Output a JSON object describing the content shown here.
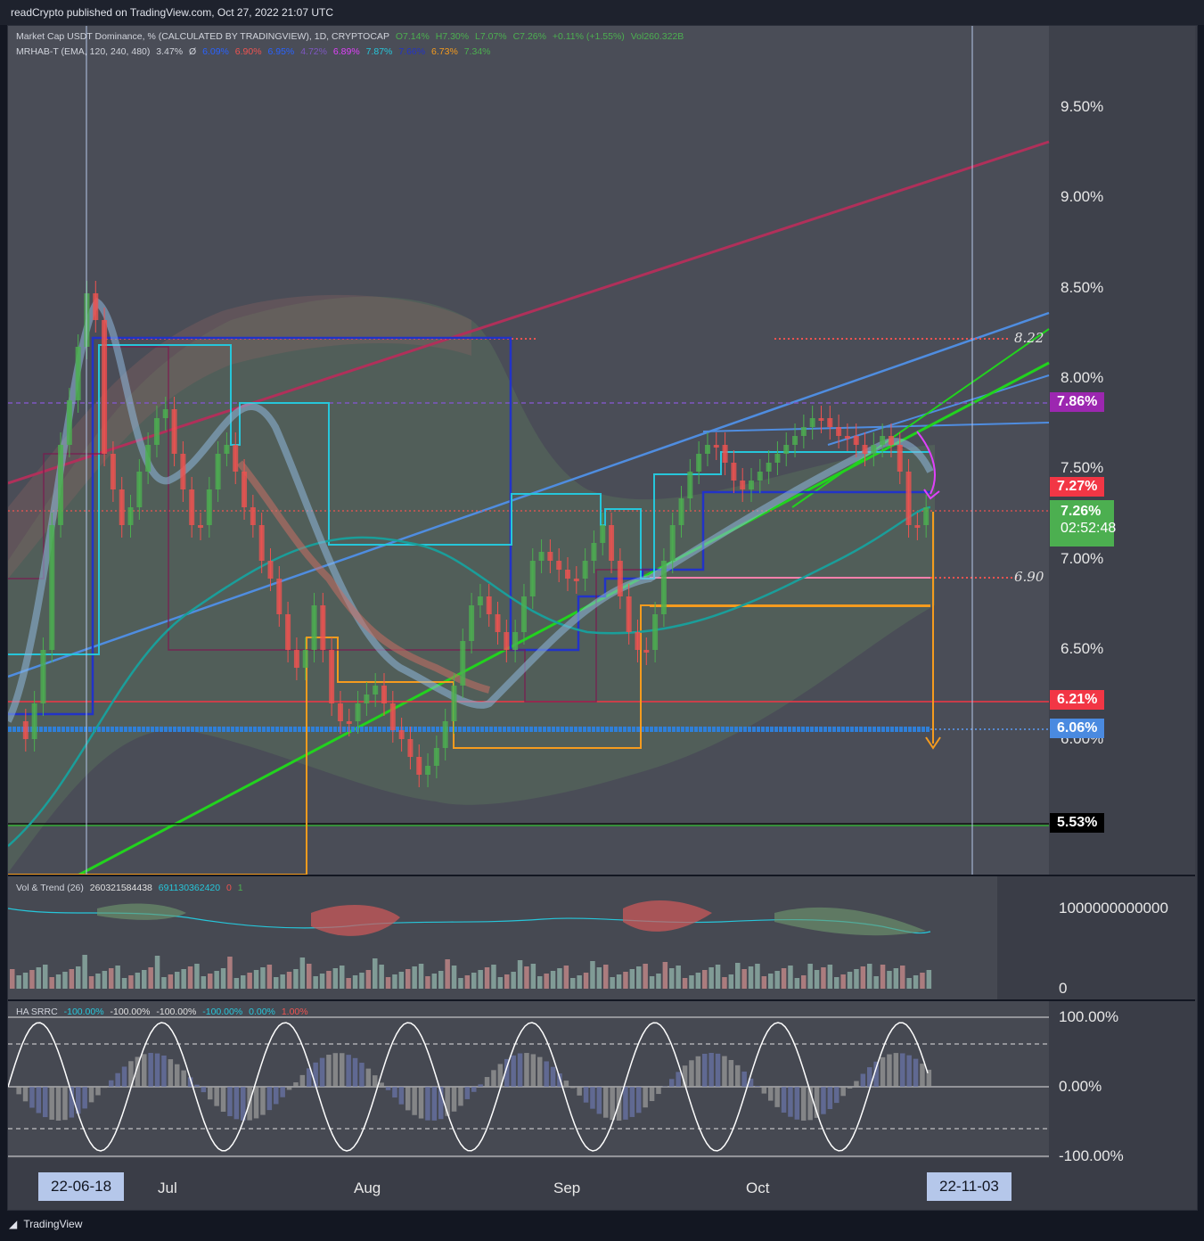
{
  "header": {
    "published": "readCrypto published on TradingView.com, Oct 27, 2022 21:07 UTC"
  },
  "legend_main": {
    "title": "Market Cap USDT Dominance, % (CALCULATED BY TRADINGVIEW), 1D, CRYPTOCAP",
    "o": "O7.14%",
    "h": "H7.30%",
    "l": "L7.07%",
    "c": "C7.26%",
    "chg": "+0.11% (+1.55%)",
    "vol": "Vol260.322B"
  },
  "legend_mrhab": {
    "title": "MRHAB-T (EMA, 120, 240, 480)",
    "v0": "3.47%",
    "sym": "Ø",
    "v1": "6.09%",
    "v2": "6.90%",
    "v3": "6.95%",
    "v4": "4.72%",
    "v5": "6.89%",
    "v6": "7.87%",
    "v7": "7.66%",
    "v8": "6.73%",
    "v9": "7.34%"
  },
  "price_axis": [
    "9.50%",
    "9.00%",
    "8.50%",
    "8.00%",
    "7.50%",
    "7.00%",
    "6.50%",
    "6.00%"
  ],
  "price_tags": {
    "purple": "7.86%",
    "red_top": "7.27%",
    "current": "7.26%",
    "countdown": "02:52:48",
    "red_low": "6.21%",
    "blue": "6.06%",
    "black": "5.53%"
  },
  "line_labels": {
    "high": "8.22",
    "low": "6.90"
  },
  "vol_panel": {
    "title": "Vol & Trend (26)",
    "v1": "260321584438",
    "v2": "691130362420",
    "v3": "0",
    "v4": "1",
    "axis_top": "1000000000000",
    "axis_bottom": "0"
  },
  "ha_panel": {
    "title": "HA SRRC",
    "v1": "-100.00%",
    "v2": "-100.00%",
    "v3": "-100.00%",
    "v4": "-100.00%",
    "v5": "0.00%",
    "v6": "1.00%",
    "axis": [
      "100.00%",
      "0.00%",
      "-100.00%"
    ]
  },
  "time_axis": {
    "start": "22-06-18",
    "labels": [
      "Jul",
      "Aug",
      "Sep",
      "Oct"
    ],
    "end": "22-11-03"
  },
  "footer": {
    "brand": "TradingView"
  },
  "colors": {
    "background": "#131722",
    "pane": "#3a3d47",
    "up": "#4caf50",
    "down": "#ef5350",
    "purple_tag": "#9c27b0",
    "red_tag": "#f23645",
    "green_tag": "#4caf50",
    "blue_tag": "#2962ff"
  }
}
